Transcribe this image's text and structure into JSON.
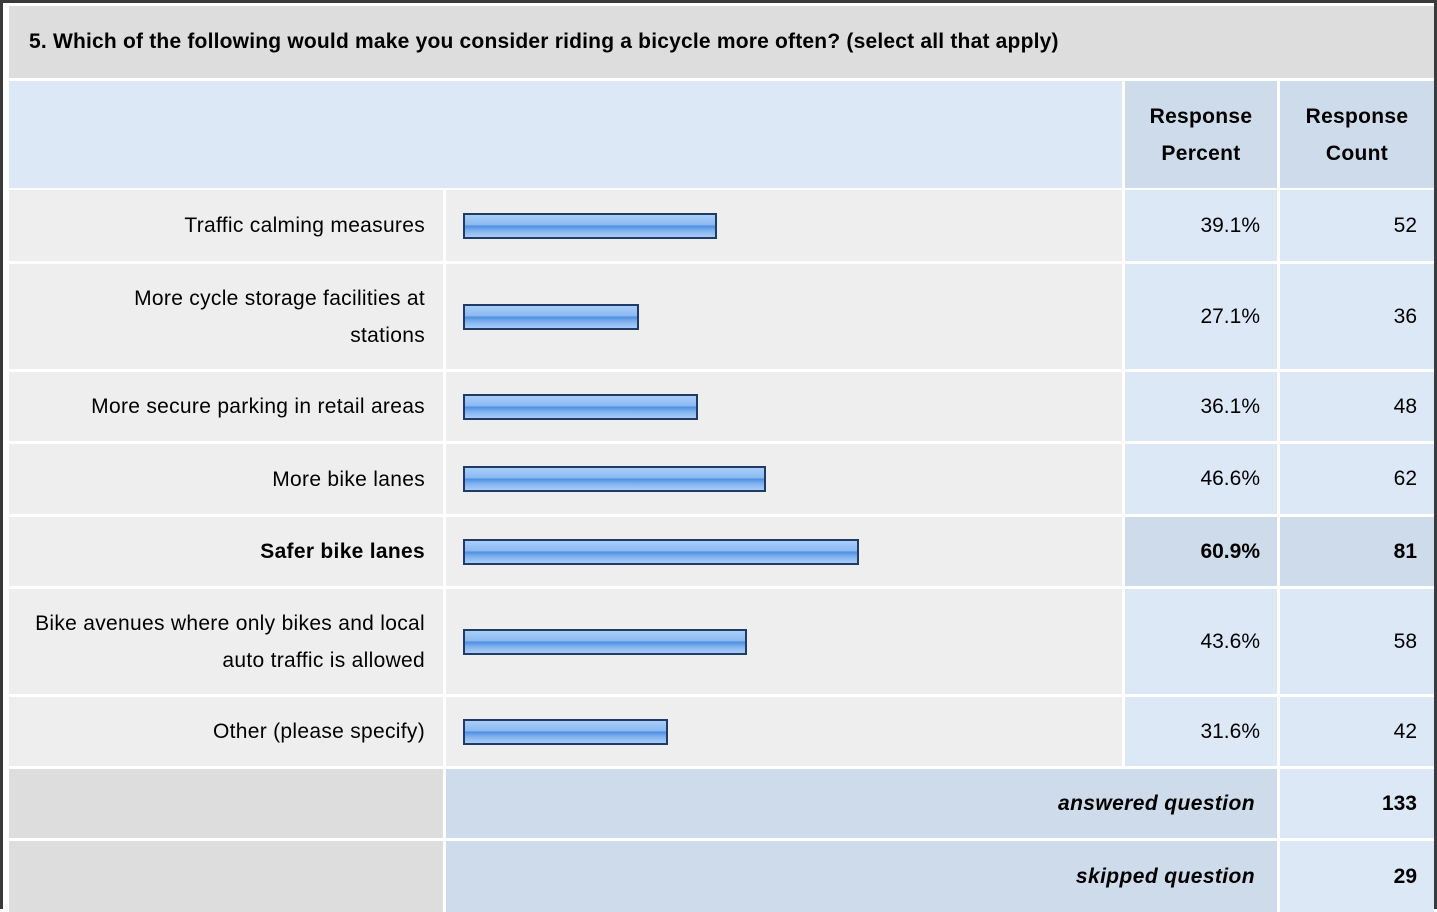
{
  "question": {
    "title": "5. Which of the following would make you consider riding a bicycle more often? (select all that apply)"
  },
  "headers": {
    "percent": "Response Percent",
    "count": "Response Count"
  },
  "chart_data": {
    "type": "bar",
    "orientation": "horizontal",
    "xlim": [
      0,
      100
    ],
    "categories": [
      "Traffic calming measures",
      "More cycle storage facilities at stations",
      "More secure parking in retail areas",
      "More bike lanes",
      "Safer bike lanes",
      "Bike avenues where only bikes and local auto traffic is allowed",
      "Other (please specify)"
    ],
    "values": [
      39.1,
      27.1,
      36.1,
      46.6,
      60.9,
      43.6,
      31.6
    ],
    "percent_labels": [
      "39.1%",
      "27.1%",
      "36.1%",
      "46.6%",
      "60.9%",
      "43.6%",
      "31.6%"
    ],
    "counts": [
      "52",
      "36",
      "48",
      "62",
      "81",
      "58",
      "42"
    ],
    "highlighted": "Safer bike lanes"
  },
  "footer": {
    "answered_label": "answered question",
    "answered_value": "133",
    "skipped_label": "skipped question",
    "skipped_value": "29"
  },
  "colors": {
    "bar_fill": "#8ab9f2",
    "bar_border": "#1f3b66",
    "header_bg": "#dce8f6",
    "label_bg": "#eeeeee"
  }
}
